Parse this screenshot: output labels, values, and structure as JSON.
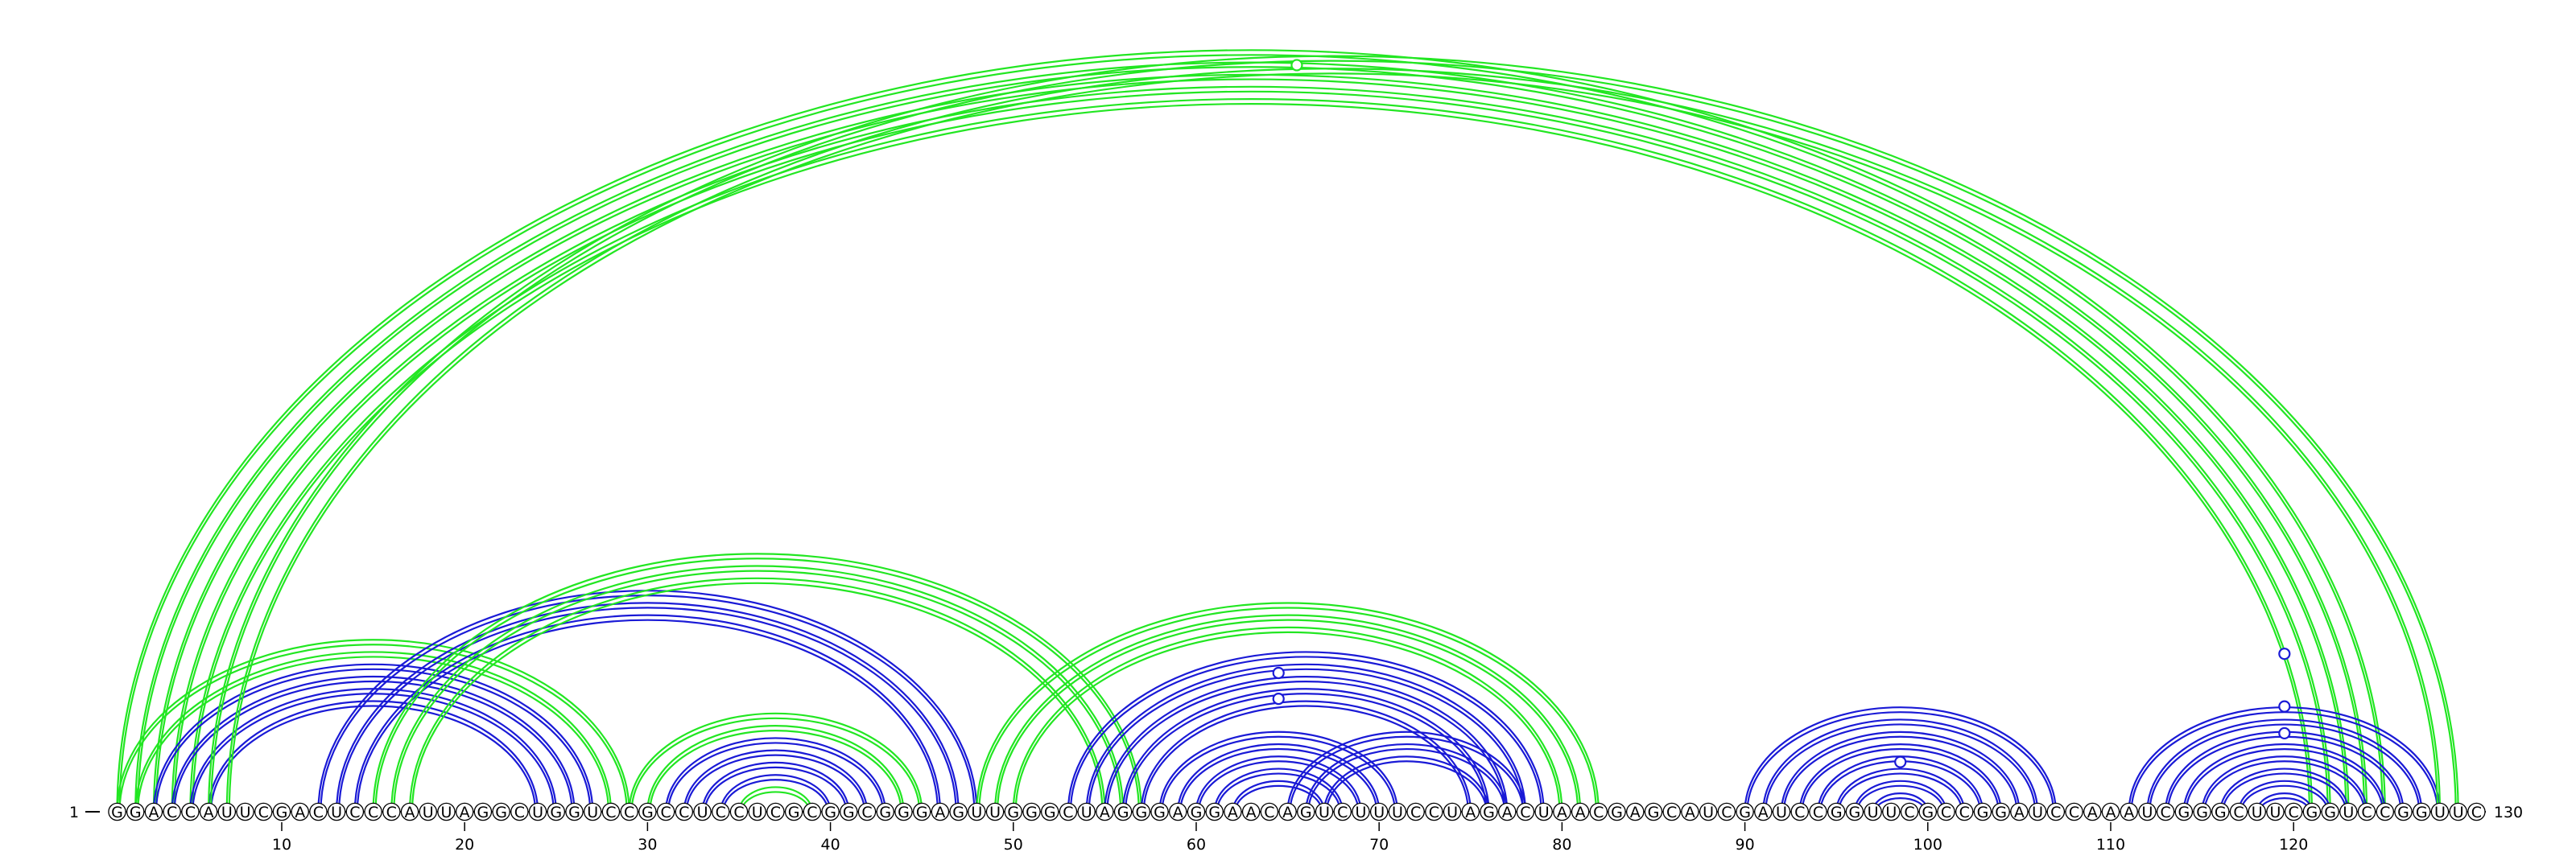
{
  "sequence": "GGACCAUUCGACUCCCAUUAGGCUGGUCCGCCUCCUCGCGGCGGGAGUUGGGCUAGGGAGGAACAGUCUUUCCUAGACUAACGAGCAUCGAUCCGGUUCGCCGGAUCCAAAUCGGGCUUCGGUCCGGUUC",
  "start_label": "1",
  "end_label": "130",
  "tick_labels": [
    "10",
    "20",
    "30",
    "40",
    "50",
    "60",
    "70",
    "80",
    "90",
    "100",
    "110",
    "120"
  ],
  "colors": {
    "green": "#22e622",
    "blue": "#1a1ad6"
  },
  "helices": [
    {
      "color": "green",
      "pairs": [
        [
          1,
          125
        ],
        [
          2,
          124
        ],
        [
          3,
          123
        ],
        [
          4,
          122
        ],
        [
          5,
          121
        ]
      ]
    },
    {
      "color": "green",
      "pairs": [
        [
          1,
          29
        ],
        [
          2,
          28
        ]
      ]
    },
    {
      "color": "blue",
      "pairs": [
        [
          3,
          27
        ],
        [
          4,
          26
        ],
        [
          5,
          25
        ],
        [
          6,
          24
        ]
      ]
    },
    {
      "color": "blue",
      "pairs": [
        [
          12,
          48
        ],
        [
          13,
          47
        ],
        [
          14,
          46
        ]
      ]
    },
    {
      "color": "green",
      "pairs": [
        [
          15,
          57
        ],
        [
          16,
          56
        ],
        [
          17,
          55
        ]
      ]
    },
    {
      "color": "green",
      "pairs": [
        [
          29,
          45
        ],
        [
          30,
          44
        ]
      ]
    },
    {
      "color": "blue",
      "pairs": [
        [
          31,
          43
        ],
        [
          32,
          42
        ],
        [
          33,
          41
        ],
        [
          34,
          40
        ]
      ]
    },
    {
      "color": "green",
      "pairs": [
        [
          35,
          39
        ]
      ]
    },
    {
      "color": "green",
      "pairs": [
        [
          48,
          82
        ],
        [
          49,
          81
        ],
        [
          50,
          80
        ]
      ]
    },
    {
      "color": "blue",
      "pairs": [
        [
          53,
          79
        ],
        [
          54,
          78
        ],
        [
          55,
          77
        ],
        [
          56,
          76
        ],
        [
          57,
          75
        ]
      ]
    },
    {
      "color": "blue",
      "pairs": [
        [
          58,
          71
        ],
        [
          59,
          70
        ],
        [
          60,
          69
        ],
        [
          61,
          68
        ],
        [
          62,
          67
        ]
      ]
    },
    {
      "color": "blue",
      "pairs": [
        [
          65,
          78
        ],
        [
          66,
          77
        ],
        [
          67,
          76
        ]
      ]
    },
    {
      "color": "blue",
      "pairs": [
        [
          90,
          107
        ],
        [
          91,
          106
        ],
        [
          92,
          105
        ],
        [
          93,
          104
        ],
        [
          94,
          103
        ],
        [
          95,
          102
        ],
        [
          96,
          101
        ],
        [
          97,
          100
        ]
      ]
    },
    {
      "color": "blue",
      "pairs": [
        [
          111,
          128
        ],
        [
          112,
          127
        ],
        [
          113,
          126
        ],
        [
          114,
          125
        ],
        [
          115,
          124
        ],
        [
          116,
          123
        ],
        [
          117,
          122
        ],
        [
          118,
          121
        ]
      ]
    },
    {
      "color": "green",
      "pairs": [
        [
          6,
          129
        ],
        [
          7,
          128
        ]
      ]
    }
  ],
  "markers": [
    {
      "pos": 65.5,
      "level": 0.78,
      "color": "green"
    },
    {
      "pos": 64.5,
      "level": 0.145,
      "color": "blue"
    },
    {
      "pos": 64.5,
      "level": 0.118,
      "color": "blue"
    },
    {
      "pos": 98.5,
      "level": 0.052,
      "color": "blue"
    },
    {
      "pos": 119.5,
      "level": 0.165,
      "color": "blue"
    },
    {
      "pos": 119.5,
      "level": 0.11,
      "color": "blue"
    },
    {
      "pos": 119.5,
      "level": 0.082,
      "color": "blue"
    }
  ]
}
